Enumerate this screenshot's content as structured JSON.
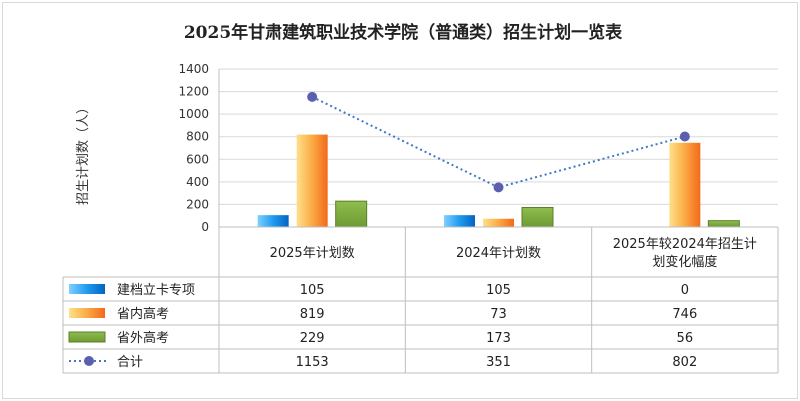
{
  "chart_data": {
    "type": "bar",
    "title": "2025年甘肃建筑职业技术学院（普通类）招生计划一览表",
    "ylabel": "招生计划数（人）",
    "ylim": [
      0,
      1400
    ],
    "yticks": [
      0,
      200,
      400,
      600,
      800,
      1000,
      1200,
      1400
    ],
    "grid": true,
    "legend_position": "data-table-left",
    "categories": [
      "2025年计划数",
      "2024年计划数",
      "2025年较2024年招生计划变化幅度"
    ],
    "category_lines": [
      [
        "2025年计划数"
      ],
      [
        "2024年计划数"
      ],
      [
        "2025年较2024年招生计",
        "划变化幅度"
      ]
    ],
    "series": [
      {
        "name": "建档立卡专项",
        "type": "bar",
        "color": "#0b84e6",
        "values": [
          105,
          105,
          0
        ]
      },
      {
        "name": "省内高考",
        "type": "bar",
        "color": "#f7942a",
        "values": [
          819,
          73,
          746
        ]
      },
      {
        "name": "省外高考",
        "type": "bar",
        "color": "#7aa23a",
        "values": [
          229,
          173,
          56
        ]
      },
      {
        "name": "合计",
        "type": "line",
        "color": "#5b5fae",
        "values": [
          1153,
          351,
          802
        ]
      }
    ]
  }
}
